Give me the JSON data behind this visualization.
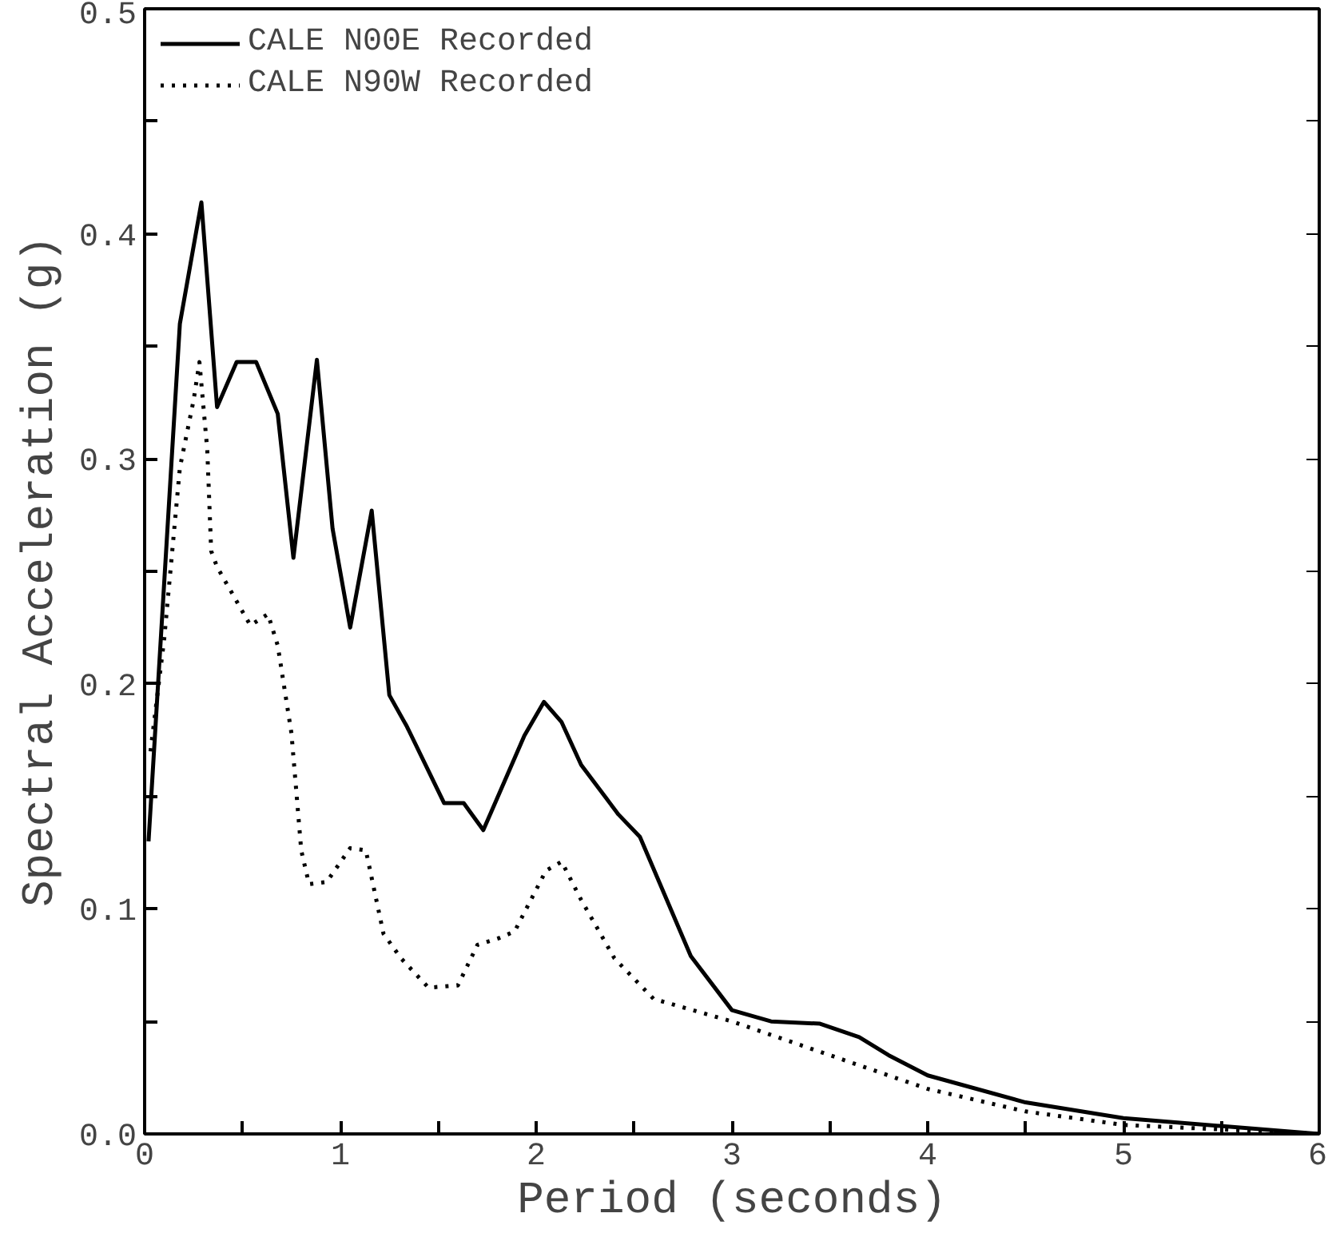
{
  "chart_data": {
    "type": "line",
    "xlabel": "Period (seconds)",
    "ylabel": "Spectral Acceleration (g)",
    "xlim": [
      0,
      6
    ],
    "ylim": [
      0,
      0.5
    ],
    "xticks": [
      0,
      {
        "value": 0.5,
        "label": null
      },
      1,
      {
        "value": 1.5,
        "label": null
      },
      2,
      {
        "value": 2.5,
        "label": null
      },
      3,
      {
        "value": 3.5,
        "label": null
      },
      4,
      {
        "value": 4.5,
        "label": null
      },
      5,
      {
        "value": 5.5,
        "label": null
      },
      6
    ],
    "yticks": [
      {
        "value": 0,
        "label": "0.0"
      },
      {
        "value": 0.05,
        "label": null
      },
      0.1,
      {
        "value": 0.15,
        "label": null
      },
      0.2,
      {
        "value": 0.25,
        "label": null
      },
      0.3,
      {
        "value": 0.35,
        "label": null
      },
      0.4,
      {
        "value": 0.45,
        "label": null
      },
      0.5
    ],
    "grid": false,
    "legend": "top left",
    "series": [
      {
        "name": "CALE N00E Recorded",
        "color": "#000000",
        "line_style": "solid",
        "x": [
          0.02,
          0.18,
          0.29,
          0.37,
          0.47,
          0.57,
          0.68,
          0.76,
          0.88,
          0.96,
          1.05,
          1.16,
          1.25,
          1.34,
          1.53,
          1.63,
          1.73,
          1.94,
          2.04,
          2.13,
          2.23,
          2.42,
          2.53,
          2.79,
          3.0,
          3.2,
          3.45,
          3.65,
          3.8,
          4.0,
          4.5,
          5.0,
          6.0
        ],
        "values": [
          0.13,
          0.36,
          0.414,
          0.323,
          0.343,
          0.343,
          0.32,
          0.256,
          0.344,
          0.269,
          0.225,
          0.277,
          0.195,
          0.181,
          0.147,
          0.147,
          0.135,
          0.177,
          0.192,
          0.183,
          0.164,
          0.142,
          0.132,
          0.079,
          0.055,
          0.05,
          0.049,
          0.043,
          0.035,
          0.026,
          0.014,
          0.007,
          0.0
        ]
      },
      {
        "name": "CALE N90W Recorded",
        "color": "#000000",
        "line_style": "dotted",
        "x": [
          0.03,
          0.1,
          0.18,
          0.25,
          0.28,
          0.32,
          0.34,
          0.37,
          0.54,
          0.63,
          0.68,
          0.75,
          0.8,
          0.84,
          0.93,
          1.05,
          1.13,
          1.22,
          1.31,
          1.45,
          1.6,
          1.7,
          1.81,
          1.89,
          2.05,
          2.13,
          2.23,
          2.4,
          2.6,
          3.0,
          3.5,
          4.0,
          4.5,
          5.0,
          6.0
        ],
        "values": [
          0.17,
          0.22,
          0.296,
          0.326,
          0.343,
          0.304,
          0.259,
          0.252,
          0.226,
          0.231,
          0.217,
          0.178,
          0.126,
          0.111,
          0.112,
          0.127,
          0.126,
          0.089,
          0.078,
          0.065,
          0.066,
          0.084,
          0.087,
          0.09,
          0.117,
          0.121,
          0.104,
          0.078,
          0.06,
          0.05,
          0.035,
          0.02,
          0.01,
          0.004,
          0.0
        ]
      }
    ]
  }
}
